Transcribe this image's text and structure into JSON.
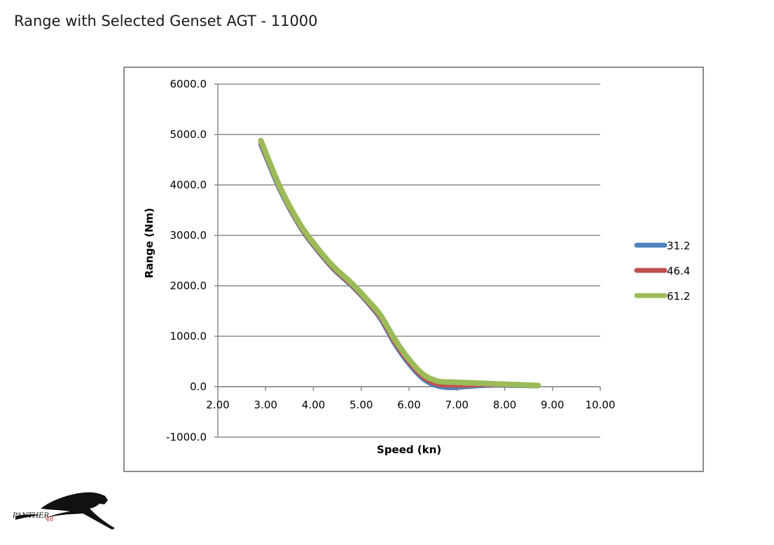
{
  "page": {
    "title": "Range with Selected Genset AGT - 11000"
  },
  "chart_data": {
    "type": "line",
    "xlabel": "Speed (kn)",
    "ylabel": "Range (Nm)",
    "xlim": [
      2.0,
      10.0
    ],
    "ylim": [
      -1000,
      6000
    ],
    "x_ticks": [
      "2.00",
      "3.00",
      "4.00",
      "5.00",
      "6.00",
      "7.00",
      "8.00",
      "9.00",
      "10.00"
    ],
    "y_ticks": [
      "6000.0",
      "5000.0",
      "4000.0",
      "3000.0",
      "2000.0",
      "1000.0",
      "0.0",
      "-1000.0"
    ],
    "grid": "horizontal",
    "legend": "right",
    "series": [
      {
        "name": "31.2",
        "color": "#4f81bd",
        "x": [
          2.9,
          3.3,
          3.7,
          4.0,
          4.4,
          4.8,
          5.1,
          5.4,
          5.7,
          6.0,
          6.3,
          6.6,
          6.9,
          7.2,
          7.5,
          7.8,
          8.1,
          8.4,
          8.7
        ],
        "y": [
          4800,
          3900,
          3200,
          2800,
          2350,
          2000,
          1700,
          1350,
          850,
          450,
          150,
          10,
          -20,
          0,
          20,
          30,
          25,
          20,
          15
        ]
      },
      {
        "name": "46.4",
        "color": "#c0504d",
        "x": [
          2.9,
          3.3,
          3.7,
          4.0,
          4.4,
          4.8,
          5.1,
          5.4,
          5.7,
          6.0,
          6.3,
          6.6,
          6.9,
          7.2,
          7.5,
          7.8,
          8.1,
          8.4,
          8.7
        ],
        "y": [
          4840,
          3930,
          3220,
          2820,
          2370,
          2020,
          1720,
          1380,
          890,
          490,
          190,
          50,
          30,
          30,
          40,
          40,
          35,
          30,
          20
        ]
      },
      {
        "name": "61.2",
        "color": "#9bbb59",
        "x": [
          2.9,
          3.3,
          3.7,
          4.0,
          4.4,
          4.8,
          5.1,
          5.4,
          5.7,
          6.0,
          6.3,
          6.6,
          6.9,
          7.2,
          7.5,
          7.8,
          8.1,
          8.4,
          8.7
        ],
        "y": [
          4880,
          3960,
          3250,
          2850,
          2400,
          2050,
          1750,
          1420,
          940,
          540,
          240,
          110,
          90,
          80,
          70,
          55,
          45,
          35,
          25
        ]
      }
    ]
  },
  "logo": {
    "text": "PANTHER",
    "number": "48",
    "text_color": "#111111",
    "number_color": "#c0312b"
  }
}
